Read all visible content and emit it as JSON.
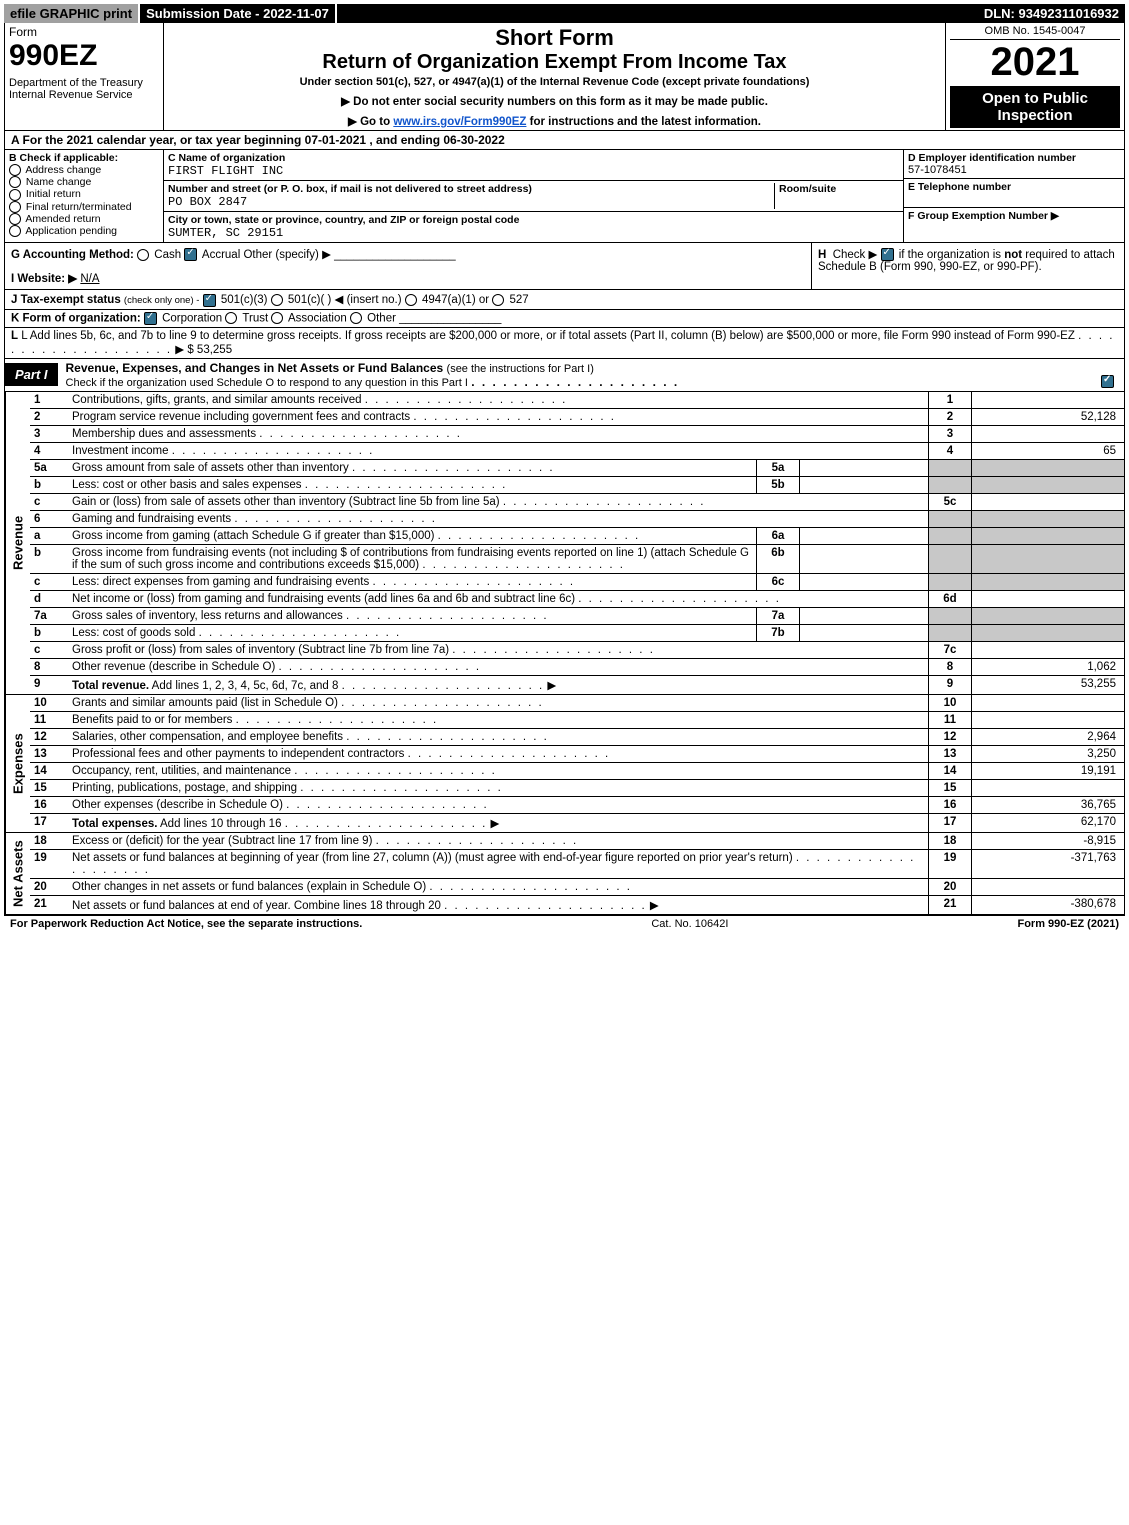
{
  "top_bar": {
    "efile": "efile GRAPHIC print",
    "submission_label": "Submission Date - 2022-11-07",
    "dln": "DLN: 93492311016932"
  },
  "header": {
    "form_word": "Form",
    "form_number": "990EZ",
    "department": "Department of the Treasury\nInternal Revenue Service",
    "short_form": "Short Form",
    "title": "Return of Organization Exempt From Income Tax",
    "subtitle": "Under section 501(c), 527, or 4947(a)(1) of the Internal Revenue Code (except private foundations)",
    "instr1": "▶ Do not enter social security numbers on this form as it may be made public.",
    "instr2_pre": "▶ Go to ",
    "instr2_link": "www.irs.gov/Form990EZ",
    "instr2_post": " for instructions and the latest information.",
    "omb": "OMB No. 1545-0047",
    "year": "2021",
    "open_to": "Open to Public Inspection"
  },
  "line_a": "A  For the 2021 calendar year, or tax year beginning 07-01-2021 , and ending 06-30-2022",
  "section_b": {
    "b_label": "B",
    "b_text": "Check if applicable:",
    "opts": [
      "Address change",
      "Name change",
      "Initial return",
      "Final return/terminated",
      "Amended return",
      "Application pending"
    ],
    "c_label": "C Name of organization",
    "name": "FIRST FLIGHT INC",
    "street_label": "Number and street (or P. O. box, if mail is not delivered to street address)",
    "room_label": "Room/suite",
    "street": "PO BOX 2847",
    "city_label": "City or town, state or province, country, and ZIP or foreign postal code",
    "city": "SUMTER, SC  29151",
    "d_label": "D Employer identification number",
    "ein": "57-1078451",
    "e_label": "E Telephone number",
    "f_label": "F Group Exemption Number  ▶"
  },
  "g_block": {
    "g_label": "G Accounting Method:",
    "g_cash": "Cash",
    "g_accrual": "Accrual",
    "g_other": "Other (specify) ▶",
    "h_text": "H  Check ▶    if the organization is not required to attach Schedule B (Form 990, 990-EZ, or 990-PF).",
    "i_label": "I Website: ▶",
    "i_value": "N/A",
    "j_label": "J Tax-exempt status",
    "j_note": "(check only one) -",
    "j_opt1": "501(c)(3)",
    "j_opt2": "501(c)(  ) ◀ (insert no.)",
    "j_opt3": "4947(a)(1) or",
    "j_opt4": "527"
  },
  "k_line": {
    "label": "K Form of organization:",
    "opts": [
      "Corporation",
      "Trust",
      "Association",
      "Other"
    ],
    "checked": 0
  },
  "l_line": {
    "text": "L Add lines 5b, 6c, and 7b to line 9 to determine gross receipts. If gross receipts are $200,000 or more, or if total assets (Part II, column (B) below) are $500,000 or more, file Form 990 instead of Form 990-EZ",
    "arrow": "▶",
    "amount": "$ 53,255"
  },
  "part1": {
    "tab": "Part I",
    "title": "Revenue, Expenses, and Changes in Net Assets or Fund Balances",
    "instr": "(see the instructions for Part I)",
    "sub": "Check if the organization used Schedule O to respond to any question in this Part I"
  },
  "sidebar": {
    "revenue": "Revenue",
    "expenses": "Expenses",
    "net": "Net Assets"
  },
  "revenue_lines": [
    {
      "n": "1",
      "desc": "Contributions, gifts, grants, and similar amounts received",
      "ln": "1",
      "amt": ""
    },
    {
      "n": "2",
      "desc": "Program service revenue including government fees and contracts",
      "ln": "2",
      "amt": "52,128"
    },
    {
      "n": "3",
      "desc": "Membership dues and assessments",
      "ln": "3",
      "amt": ""
    },
    {
      "n": "4",
      "desc": "Investment income",
      "ln": "4",
      "amt": "65"
    },
    {
      "n": "5a",
      "desc": "Gross amount from sale of assets other than inventory",
      "sub": "5a"
    },
    {
      "n": "b",
      "desc": "Less: cost or other basis and sales expenses",
      "sub": "5b"
    },
    {
      "n": "c",
      "desc": "Gain or (loss) from sale of assets other than inventory (Subtract line 5b from line 5a)",
      "ln": "5c",
      "amt": ""
    },
    {
      "n": "6",
      "desc": "Gaming and fundraising events",
      "noright": true
    },
    {
      "n": "a",
      "desc": "Gross income from gaming (attach Schedule G if greater than $15,000)",
      "sub": "6a"
    },
    {
      "n": "b",
      "desc": "Gross income from fundraising events (not including $                       of contributions from fundraising events reported on line 1) (attach Schedule G if the sum of such gross income and contributions exceeds $15,000)",
      "sub": "6b"
    },
    {
      "n": "c",
      "desc": "Less: direct expenses from gaming and fundraising events",
      "sub": "6c"
    },
    {
      "n": "d",
      "desc": "Net income or (loss) from gaming and fundraising events (add lines 6a and 6b and subtract line 6c)",
      "ln": "6d",
      "amt": ""
    },
    {
      "n": "7a",
      "desc": "Gross sales of inventory, less returns and allowances",
      "sub": "7a"
    },
    {
      "n": "b",
      "desc": "Less: cost of goods sold",
      "sub": "7b"
    },
    {
      "n": "c",
      "desc": "Gross profit or (loss) from sales of inventory (Subtract line 7b from line 7a)",
      "ln": "7c",
      "amt": ""
    },
    {
      "n": "8",
      "desc": "Other revenue (describe in Schedule O)",
      "ln": "8",
      "amt": "1,062"
    },
    {
      "n": "9",
      "desc": "Total revenue. Add lines 1, 2, 3, 4, 5c, 6d, 7c, and 8",
      "ln": "9",
      "amt": "53,255",
      "bold": true,
      "arrow": true
    }
  ],
  "expense_lines": [
    {
      "n": "10",
      "desc": "Grants and similar amounts paid (list in Schedule O)",
      "ln": "10",
      "amt": ""
    },
    {
      "n": "11",
      "desc": "Benefits paid to or for members",
      "ln": "11",
      "amt": ""
    },
    {
      "n": "12",
      "desc": "Salaries, other compensation, and employee benefits",
      "ln": "12",
      "amt": "2,964"
    },
    {
      "n": "13",
      "desc": "Professional fees and other payments to independent contractors",
      "ln": "13",
      "amt": "3,250"
    },
    {
      "n": "14",
      "desc": "Occupancy, rent, utilities, and maintenance",
      "ln": "14",
      "amt": "19,191"
    },
    {
      "n": "15",
      "desc": "Printing, publications, postage, and shipping",
      "ln": "15",
      "amt": ""
    },
    {
      "n": "16",
      "desc": "Other expenses (describe in Schedule O)",
      "ln": "16",
      "amt": "36,765"
    },
    {
      "n": "17",
      "desc": "Total expenses. Add lines 10 through 16",
      "ln": "17",
      "amt": "62,170",
      "bold": true,
      "arrow": true
    }
  ],
  "net_lines": [
    {
      "n": "18",
      "desc": "Excess or (deficit) for the year (Subtract line 17 from line 9)",
      "ln": "18",
      "amt": "-8,915"
    },
    {
      "n": "19",
      "desc": "Net assets or fund balances at beginning of year (from line 27, column (A)) (must agree with end-of-year figure reported on prior year's return)",
      "ln": "19",
      "amt": "-371,763"
    },
    {
      "n": "20",
      "desc": "Other changes in net assets or fund balances (explain in Schedule O)",
      "ln": "20",
      "amt": ""
    },
    {
      "n": "21",
      "desc": "Net assets or fund balances at end of year. Combine lines 18 through 20",
      "ln": "21",
      "amt": "-380,678",
      "arrow": true
    }
  ],
  "footer": {
    "left": "For Paperwork Reduction Act Notice, see the separate instructions.",
    "cat": "Cat. No. 10642I",
    "right": "Form 990-EZ (2021)"
  }
}
